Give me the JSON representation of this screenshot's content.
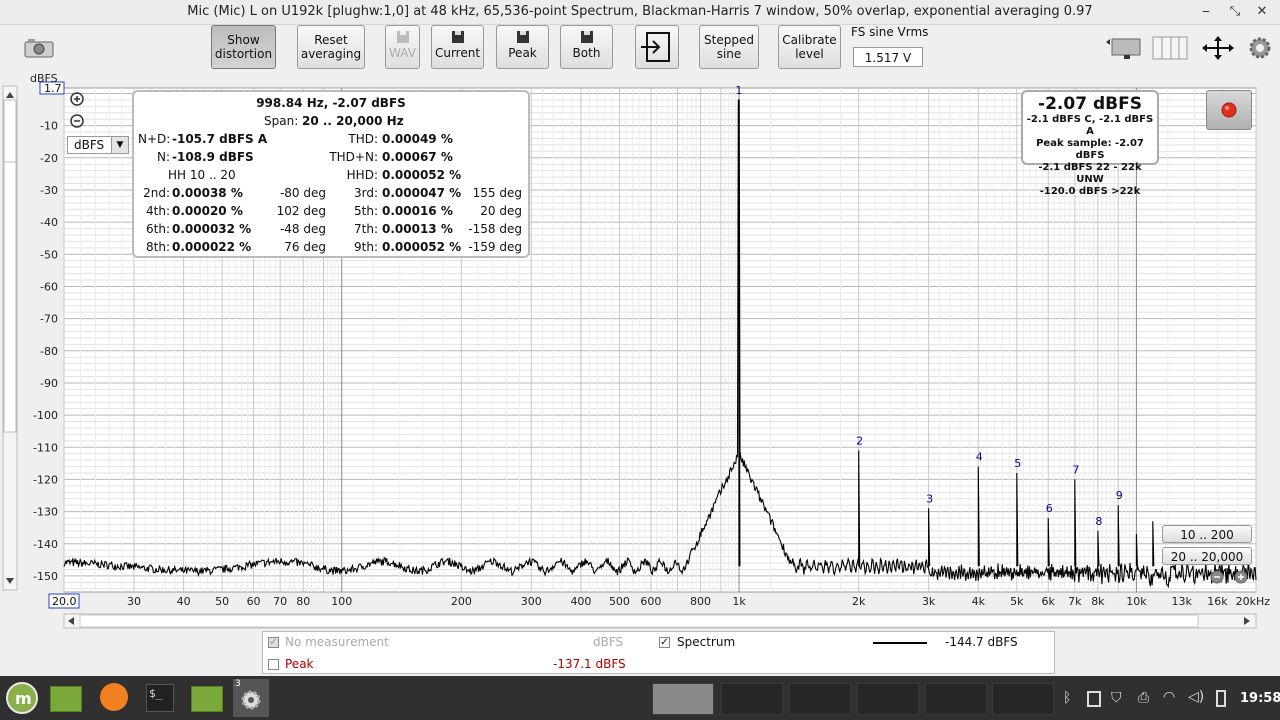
{
  "window": {
    "title": "Mic (Mic) L on U192k [plughw:1,0] at 48 kHz, 65,536-point Spectrum, Blackman-Harris 7 window, 50% overlap, exponential averaging 0.97",
    "minimize_icon": "minimize-icon",
    "restore_icon": "restore-icon",
    "close_icon": "close-icon"
  },
  "toolbar": {
    "show_distortion": "Show distortion",
    "reset_averaging": "Reset averaging",
    "wav": "WAV",
    "current": "Current",
    "peak": "Peak",
    "both": "Both",
    "stepped_sine": "Stepped sine",
    "calibrate_level": "Calibrate level",
    "fs_label": "FS sine Vrms",
    "fs_value": "1.517 V"
  },
  "axes": {
    "y_unit": "dBFS",
    "y_top_value": "1.7",
    "x_start_value": "20.0",
    "y_ticks": [
      "-10",
      "-20",
      "-30",
      "-40",
      "-50",
      "-60",
      "-70",
      "-80",
      "-90",
      "-100",
      "-110",
      "-120",
      "-130",
      "-140",
      "-150"
    ],
    "x_ticks": [
      "30",
      "40",
      "50",
      "60",
      "70",
      "80",
      "100",
      "200",
      "300",
      "400",
      "500",
      "600",
      "800",
      "1k",
      "2k",
      "3k",
      "4k",
      "5k",
      "6k",
      "7k",
      "8k",
      "10k",
      "13k",
      "16k",
      "20kHz"
    ],
    "dbfs_select": "dBFS"
  },
  "info_panel": {
    "peak_line": "998.84 Hz, -2.07 dBFS",
    "span_label": "Span:",
    "span_value": "20 .. 20,000 Hz",
    "nd_label": "N+D:",
    "nd_value": "-105.7 dBFS A",
    "thd_label": "THD:",
    "thd_value": "0.00049 %",
    "n_label": "N:",
    "n_value": "-108.9 dBFS",
    "thdn_label": "THD+N:",
    "thdn_value": "0.00067 %",
    "hh_label": "HH 10 .. 20",
    "hhd_label": "HHD:",
    "hhd_value": "0.000052 %",
    "harmonics": [
      {
        "l1": "2nd:",
        "v1": "0.00038 %",
        "d1": "-80 deg",
        "l2": "3rd:",
        "v2": "0.000047 %",
        "d2": "155 deg"
      },
      {
        "l1": "4th:",
        "v1": "0.00020 %",
        "d1": "102 deg",
        "l2": "5th:",
        "v2": "0.00016 %",
        "d2": "20 deg"
      },
      {
        "l1": "6th:",
        "v1": "0.000032 %",
        "d1": "-48 deg",
        "l2": "7th:",
        "v2": "0.00013 %",
        "d2": "-158 deg"
      },
      {
        "l1": "8th:",
        "v1": "0.000022 %",
        "d1": "76 deg",
        "l2": "9th:",
        "v2": "0.000052 %",
        "d2": "-159 deg"
      }
    ]
  },
  "level_panel": {
    "main": "-2.07 dBFS",
    "line1": "-2.1 dBFS C, -2.1 dBFS A",
    "line2": "Peak sample: -2.07 dBFS",
    "line3": "-2.1 dBFS 22 - 22k UNW",
    "line4": "-120.0 dBFS >22k"
  },
  "zoom": {
    "range1": "10 .. 200",
    "range2": "20 .. 20,000"
  },
  "legend": {
    "no_measurement": "No measurement",
    "no_measurement_unit": "dBFS",
    "spectrum": "Spectrum",
    "spectrum_value": "-144.7 dBFS",
    "peak": "Peak",
    "peak_value": "-137.1 dBFS"
  },
  "taskbar": {
    "clock": "19:58",
    "badge": "3"
  },
  "colors": {
    "trace": "#000000",
    "harmonic_label": "#00008b",
    "peak_text": "#b00000",
    "record": "#e03020"
  },
  "chart_data": {
    "type": "line",
    "x_scale": "log",
    "xlim": [
      20,
      20000
    ],
    "ylim": [
      -155,
      1.7
    ],
    "ylabel": "dBFS",
    "grid": true,
    "fundamental": {
      "x": 998.84,
      "y": -2.07,
      "label": "1"
    },
    "harmonics": [
      {
        "label": "2",
        "x": 2000,
        "y": -111
      },
      {
        "label": "3",
        "x": 3000,
        "y": -129
      },
      {
        "label": "4",
        "x": 4000,
        "y": -116
      },
      {
        "label": "5",
        "x": 5000,
        "y": -118
      },
      {
        "label": "6",
        "x": 6000,
        "y": -132
      },
      {
        "label": "7",
        "x": 7000,
        "y": -120
      },
      {
        "label": "8",
        "x": 8000,
        "y": -136
      },
      {
        "label": "9",
        "x": 9000,
        "y": -128
      },
      {
        "label": "",
        "x": 10000,
        "y": -137
      },
      {
        "label": "",
        "x": 11000,
        "y": -133
      }
    ],
    "noise_floor": -147
  }
}
